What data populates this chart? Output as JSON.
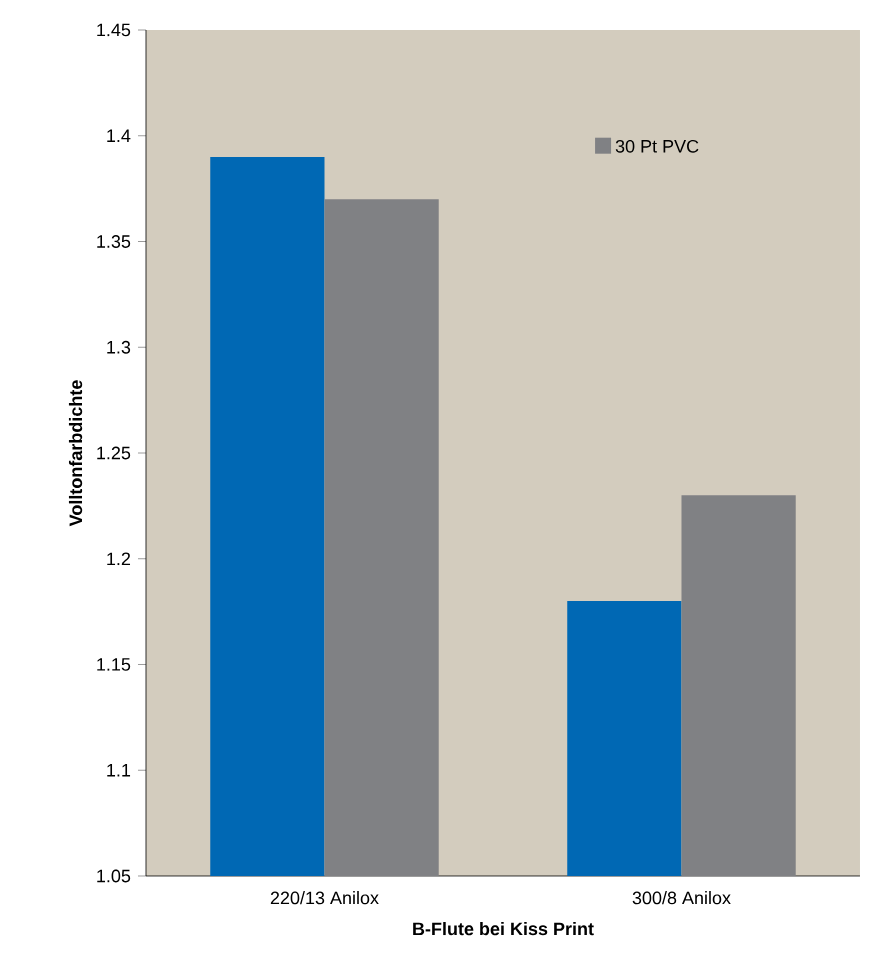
{
  "chart_data": {
    "type": "bar",
    "xlabel": "B-Flute bei Kiss Print",
    "ylabel": "Volltonfarbdichte",
    "categories": [
      "220/13 Anilox",
      "300/8 Anilox"
    ],
    "series": [
      {
        "color": "#0068b4",
        "values": [
          1.39,
          1.18
        ]
      },
      {
        "name": "30 Pt PVC",
        "color": "#808184",
        "values": [
          1.37,
          1.23
        ]
      }
    ],
    "ylim": [
      1.05,
      1.45
    ],
    "yticks": [
      1.05,
      1.1,
      1.15,
      1.2,
      1.25,
      1.3,
      1.35,
      1.4,
      1.45
    ],
    "grid": false,
    "legend": "top right"
  }
}
